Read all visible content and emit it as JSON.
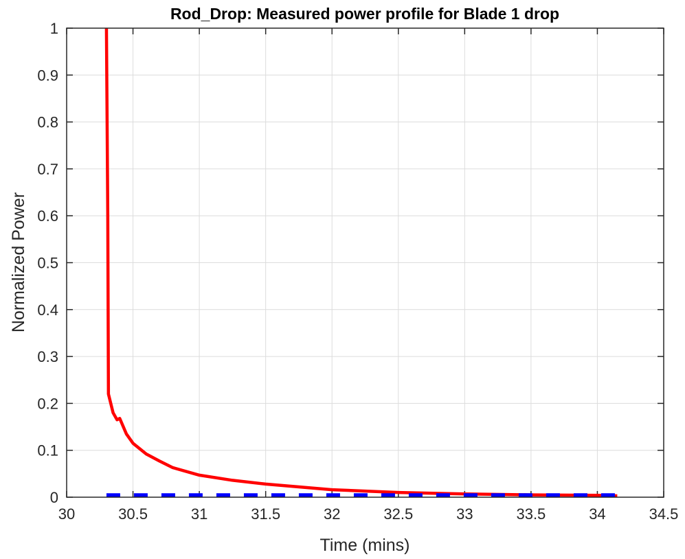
{
  "chart_data": {
    "type": "line",
    "title": "Rod_Drop: Measured power profile for Blade 1 drop",
    "xlabel": "Time (mins)",
    "ylabel": "Normalized Power",
    "xlim": [
      30,
      34.5
    ],
    "xticks": [
      30,
      30.5,
      31,
      31.5,
      32,
      32.5,
      33,
      33.5,
      34,
      34.5
    ],
    "ylim": [
      0,
      1
    ],
    "yticks": [
      0,
      0.1,
      0.2,
      0.3,
      0.4,
      0.5,
      0.6,
      0.7,
      0.8,
      0.9,
      1
    ],
    "grid": true,
    "series": [
      {
        "color": "#ff0000",
        "dash": false,
        "x": [
          30.3,
          30.31,
          30.315,
          30.35,
          30.38,
          30.4,
          30.45,
          30.5,
          30.6,
          30.7,
          30.8,
          31,
          31.25,
          31.5,
          31.75,
          32,
          32.5,
          33,
          33.5,
          34,
          34.15
        ],
        "values": [
          1,
          0.6,
          0.22,
          0.18,
          0.165,
          0.168,
          0.135,
          0.115,
          0.092,
          0.077,
          0.063,
          0.047,
          0.036,
          0.028,
          0.022,
          0.016,
          0.01,
          0.007,
          0.005,
          0.004,
          0.003
        ]
      },
      {
        "color": "#0000ff",
        "dash": true,
        "x": [
          30.3,
          34.15
        ],
        "values": [
          0.004,
          0.004
        ]
      }
    ]
  }
}
